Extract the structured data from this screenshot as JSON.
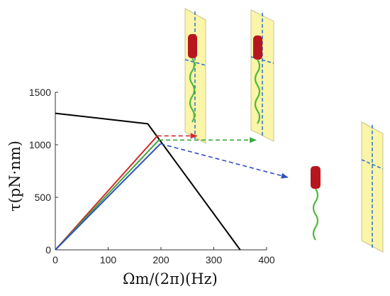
{
  "chart_data": {
    "type": "line",
    "xlabel": "Ωm/(2π)(Hz)",
    "ylabel": "τ(pN·nm)",
    "xlim": [
      0,
      400
    ],
    "ylim": [
      0,
      1500
    ],
    "xticks": [
      "0",
      "100",
      "200",
      "300",
      "400"
    ],
    "yticks": [
      "0",
      "500",
      "1000",
      "1500"
    ],
    "grid": false,
    "series": [
      {
        "color": "#000000",
        "x": [
          0,
          175,
          350
        ],
        "y": [
          1300,
          1200,
          0
        ]
      },
      {
        "color": "#d42a2a",
        "x": [
          0,
          193
        ],
        "y": [
          0,
          1085
        ]
      },
      {
        "color": "#3aa93a",
        "x": [
          0,
          196
        ],
        "y": [
          0,
          1045
        ]
      },
      {
        "color": "#2f4fbf",
        "x": [
          0,
          199
        ],
        "y": [
          0,
          1010
        ]
      }
    ],
    "annotations": [
      {
        "kind": "dashed-arrow",
        "color": "#d42a2a",
        "from": [
          193,
          1085
        ],
        "to": [
          268,
          1085
        ]
      },
      {
        "kind": "dashed-arrow",
        "color": "#3aa93a",
        "from": [
          196,
          1045
        ],
        "to": [
          380,
          1045
        ]
      },
      {
        "kind": "dashed-arrow",
        "color": "#2f4fbf",
        "from": [
          199,
          1010
        ],
        "to": [
          440,
          690
        ]
      }
    ]
  },
  "colors": {
    "panel_fill": "#faf5a9",
    "panel_stroke": "#c9c48a",
    "axis_dash": "#2a6fd0",
    "cell_body": "#b8161e",
    "flagellum": "#4cbb3a"
  },
  "icons": [
    "membrane-panel-icon",
    "cell-body-icon",
    "flagellum-icon"
  ]
}
